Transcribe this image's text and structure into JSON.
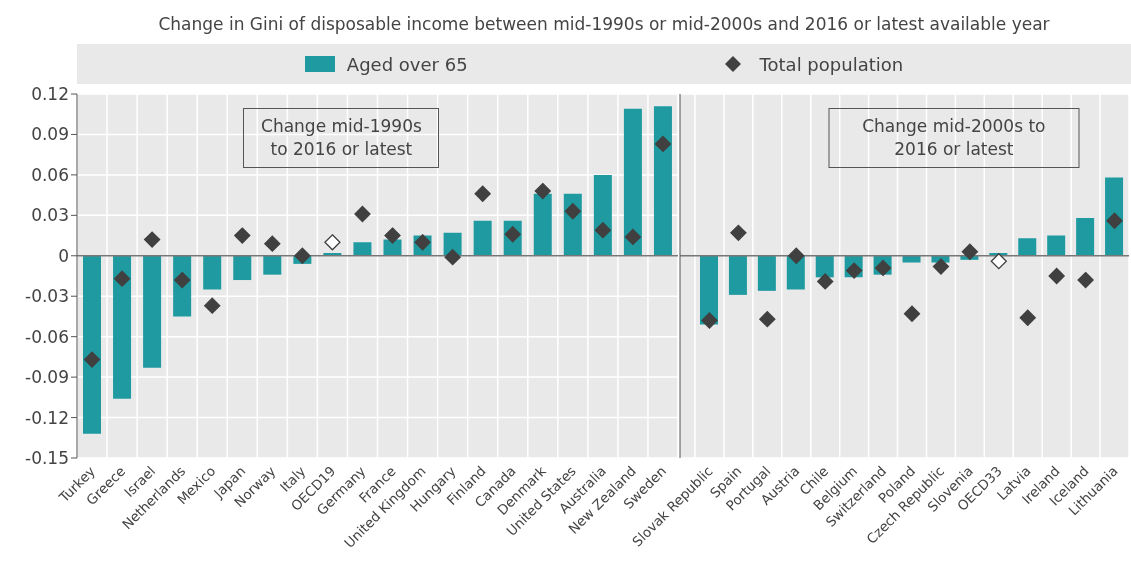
{
  "chart_data": [
    {
      "type": "bar",
      "title": "Change in Gini of disposable income between mid-1990s or mid-2000s and 2016 or latest available year",
      "legend": "top",
      "grid": true,
      "categories": [
        "Turkey",
        "Greece",
        "Israel",
        "Netherlands",
        "Mexico",
        "Japan",
        "Norway",
        "Italy",
        "OECD19",
        "Germany",
        "France",
        "United Kingdom",
        "Hungary",
        "Finland",
        "Canada",
        "Denmark",
        "United States",
        "Australia",
        "New Zealand",
        "Sweden"
      ],
      "series": [
        {
          "name": "Aged over 65",
          "color": "#1e9aa0",
          "values": [
            -0.132,
            -0.106,
            -0.083,
            -0.045,
            -0.025,
            -0.018,
            -0.014,
            -0.006,
            0.002,
            0.01,
            0.012,
            0.015,
            0.017,
            0.026,
            0.026,
            0.046,
            0.046,
            0.06,
            0.109,
            0.111
          ]
        },
        {
          "name": "Total population",
          "type": "scatter",
          "marker": "diamond",
          "color": "#404040",
          "colors": [
            "#404040",
            "#404040",
            "#404040",
            "#404040",
            "#404040",
            "#404040",
            "#404040",
            "#404040",
            "#ffffff",
            "#404040",
            "#404040",
            "#404040",
            "#404040",
            "#404040",
            "#404040",
            "#404040",
            "#404040",
            "#404040",
            "#404040",
            "#404040"
          ],
          "values": [
            -0.077,
            -0.017,
            0.012,
            -0.018,
            -0.037,
            0.015,
            0.009,
            0,
            0.01,
            0.031,
            0.015,
            0.01,
            -0.001,
            0.046,
            0.016,
            0.048,
            0.033,
            0.019,
            0.014,
            0.083
          ]
        }
      ],
      "ylim": [
        -0.15,
        0.12
      ],
      "yticks": [
        0.12,
        0.09,
        0.06,
        0.03,
        0,
        -0.03,
        -0.06,
        -0.09,
        -0.12,
        -0.15
      ],
      "annotations": [
        "Change mid-1990s to 2016 or latest"
      ]
    },
    {
      "type": "bar",
      "grid": true,
      "tick_labels": "x",
      "categories": [
        "Slovak Republic",
        "Spain",
        "Portugal",
        "Austria",
        "Chile",
        "Belgium",
        "Switzerland",
        "Poland",
        "Czech Republic",
        "Slovenia",
        "OECD33",
        "Latvia",
        "Ireland",
        "Iceland",
        "Lithuania"
      ],
      "series": [
        {
          "color": "#1e9aa0",
          "values": [
            -0.051,
            -0.029,
            -0.026,
            -0.025,
            -0.016,
            -0.016,
            -0.014,
            -0.005,
            -0.005,
            -0.003,
            0.002,
            0.013,
            0.015,
            0.028,
            0.058
          ]
        },
        {
          "type": "scatter",
          "marker": "diamond",
          "color": "#404040",
          "colors": [
            "#404040",
            "#404040",
            "#404040",
            "#404040",
            "#404040",
            "#404040",
            "#404040",
            "#404040",
            "#404040",
            "#404040",
            "#ffffff",
            "#404040",
            "#404040",
            "#404040",
            "#404040"
          ],
          "values": [
            -0.048,
            0.017,
            -0.047,
            0,
            -0.019,
            -0.011,
            -0.009,
            -0.043,
            -0.008,
            0.003,
            -0.004,
            -0.046,
            -0.015,
            -0.018,
            0.026
          ]
        }
      ],
      "ylim": [
        -0.15,
        0.12
      ],
      "yticks": [
        0.12,
        0.09,
        0.06,
        0.03,
        0,
        -0.03,
        -0.06,
        -0.09,
        -0.12,
        -0.15
      ],
      "annotations": [
        "Change mid-2000s to 2016 or latest"
      ]
    }
  ]
}
